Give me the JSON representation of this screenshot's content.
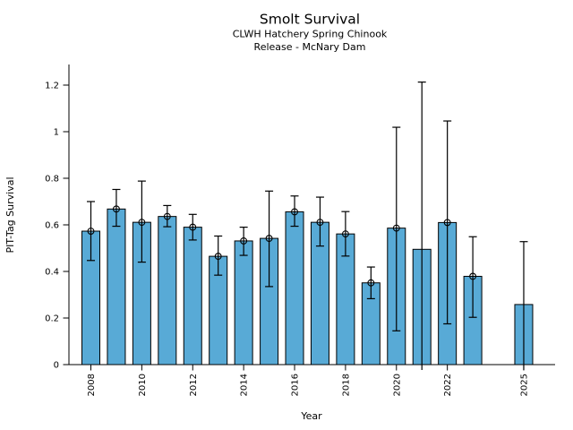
{
  "chart_data": {
    "type": "bar",
    "title": "Smolt Survival",
    "subtitle1": "CLWH Hatchery Spring Chinook",
    "subtitle2": "Release - McNary Dam",
    "xlabel": "Year",
    "ylabel": "PIT-Tag Survival",
    "ylim": [
      0,
      1.29
    ],
    "grid": false,
    "legend": "none",
    "bar_color": "#58aad6",
    "bar_edge_color": "#000000",
    "error_color": "#000000",
    "yticks": [
      0,
      0.2,
      0.4,
      0.6,
      0.8,
      1,
      1.2
    ],
    "ytick_labels": [
      "0",
      "0.2",
      "0.4",
      "0.6",
      "0.8",
      "1",
      "1.2"
    ],
    "xtick_years": [
      2008,
      2010,
      2012,
      2014,
      2016,
      2018,
      2020,
      2022,
      2025
    ],
    "xtick_labels": [
      "2008",
      "2010",
      "2012",
      "2014",
      "2016",
      "2018",
      "2020",
      "2022",
      "2025"
    ],
    "points": [
      {
        "year": 2008,
        "value": 0.573,
        "err_low": 0.447,
        "err_high": 0.7,
        "marker": true,
        "low_open": false
      },
      {
        "year": 2009,
        "value": 0.668,
        "err_low": 0.594,
        "err_high": 0.752,
        "marker": true,
        "low_open": false
      },
      {
        "year": 2010,
        "value": 0.611,
        "err_low": 0.44,
        "err_high": 0.788,
        "marker": true,
        "low_open": false
      },
      {
        "year": 2011,
        "value": 0.636,
        "err_low": 0.592,
        "err_high": 0.683,
        "marker": true,
        "low_open": false
      },
      {
        "year": 2012,
        "value": 0.59,
        "err_low": 0.535,
        "err_high": 0.645,
        "marker": true,
        "low_open": false
      },
      {
        "year": 2013,
        "value": 0.465,
        "err_low": 0.384,
        "err_high": 0.552,
        "marker": true,
        "low_open": false
      },
      {
        "year": 2014,
        "value": 0.531,
        "err_low": 0.469,
        "err_high": 0.59,
        "marker": true,
        "low_open": false
      },
      {
        "year": 2015,
        "value": 0.542,
        "err_low": 0.335,
        "err_high": 0.745,
        "marker": true,
        "low_open": false
      },
      {
        "year": 2016,
        "value": 0.656,
        "err_low": 0.594,
        "err_high": 0.724,
        "marker": true,
        "low_open": false
      },
      {
        "year": 2017,
        "value": 0.611,
        "err_low": 0.509,
        "err_high": 0.719,
        "marker": true,
        "low_open": false
      },
      {
        "year": 2018,
        "value": 0.561,
        "err_low": 0.466,
        "err_high": 0.657,
        "marker": true,
        "low_open": false
      },
      {
        "year": 2019,
        "value": 0.351,
        "err_low": 0.283,
        "err_high": 0.419,
        "marker": true,
        "low_open": false
      },
      {
        "year": 2020,
        "value": 0.586,
        "err_low": 0.145,
        "err_high": 1.019,
        "marker": true,
        "low_open": false
      },
      {
        "year": 2021,
        "value": 0.495,
        "err_low": 0.0,
        "err_high": 1.213,
        "marker": false,
        "low_open": true
      },
      {
        "year": 2022,
        "value": 0.61,
        "err_low": 0.175,
        "err_high": 1.046,
        "marker": true,
        "low_open": false
      },
      {
        "year": 2023,
        "value": 0.379,
        "err_low": 0.203,
        "err_high": 0.549,
        "marker": true,
        "low_open": false
      },
      {
        "year": 2025,
        "value": 0.258,
        "err_low": 0.0,
        "err_high": 0.528,
        "marker": false,
        "low_open": true
      }
    ]
  }
}
